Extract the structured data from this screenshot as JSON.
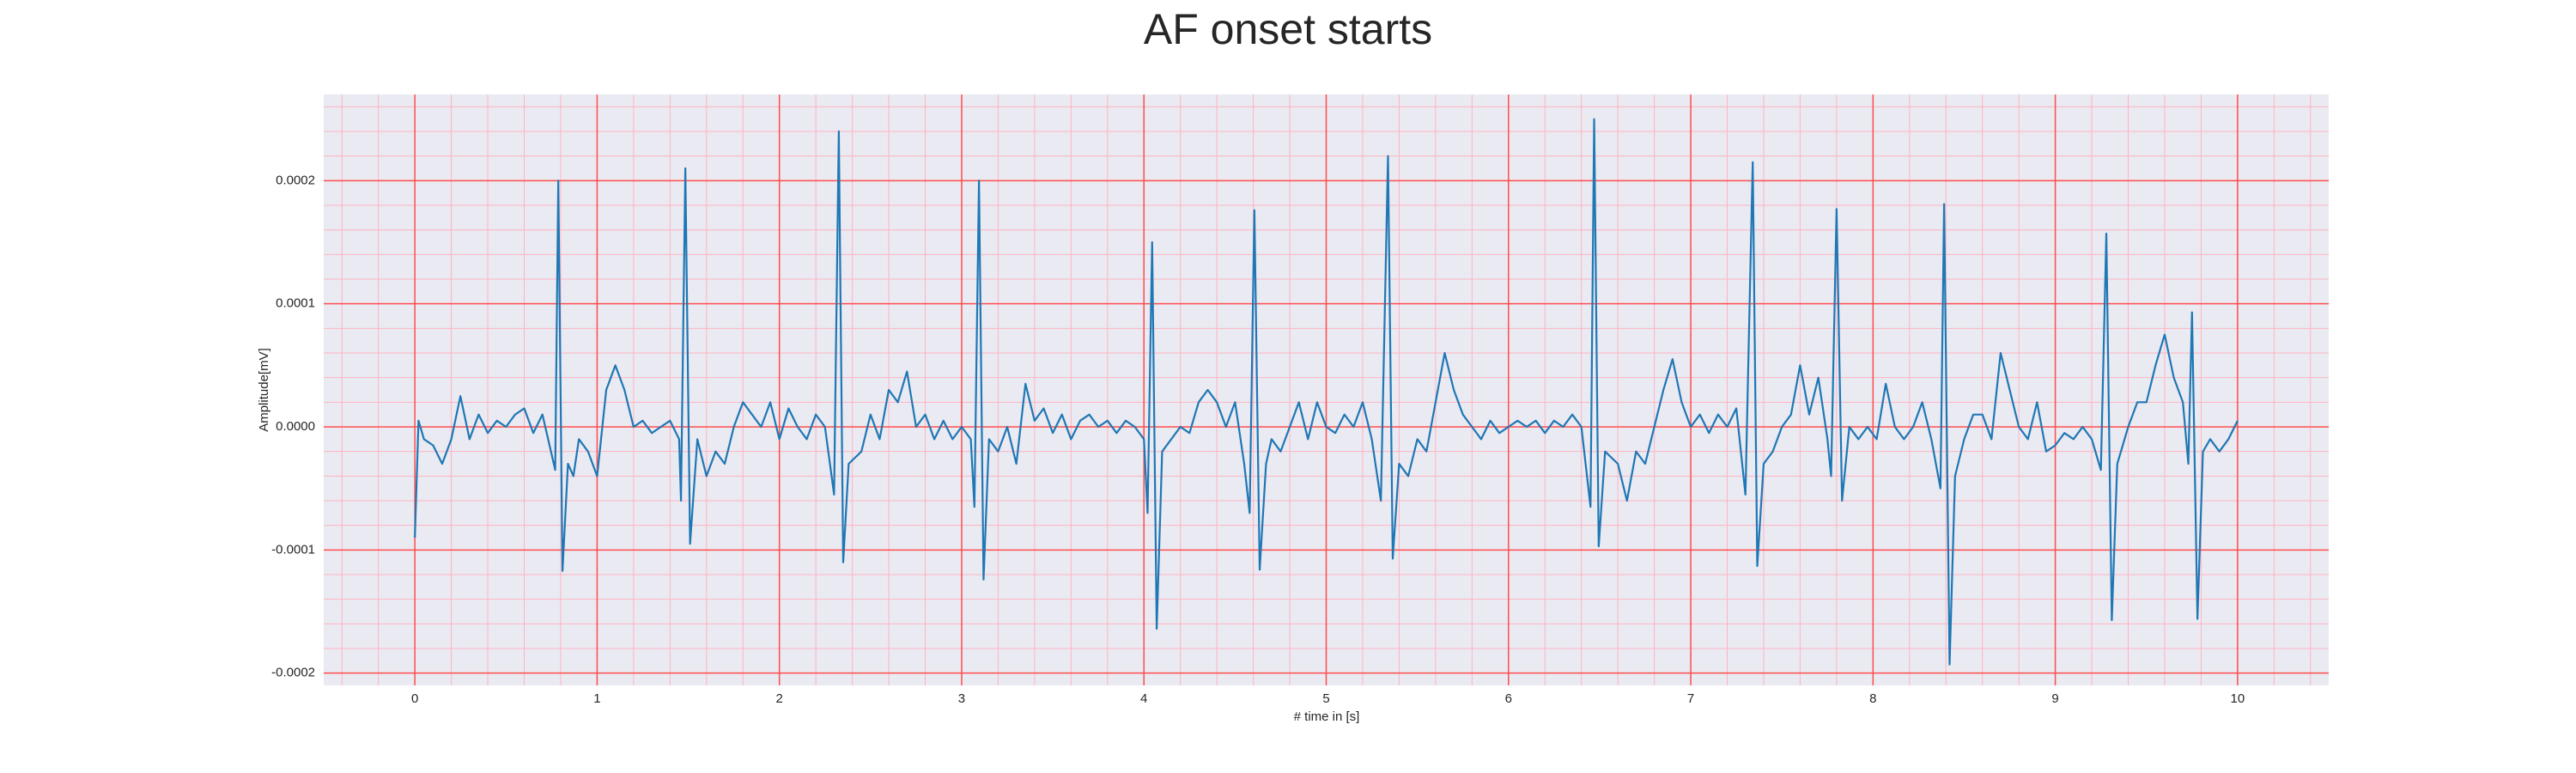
{
  "chart_data": {
    "type": "line",
    "title": "AF onset starts",
    "x_label": "# time in [s]",
    "y_label": "Amplitude[mV]",
    "color": "#1f77b4",
    "grid": true,
    "grid_color": "#ff4d4d",
    "minor_grid_color": "#ffb3c1",
    "background": "#eaeaf2",
    "xlim": [
      -0.5,
      10.5
    ],
    "ylim": [
      -0.00021,
      0.00027
    ],
    "xticks": [
      0,
      1,
      2,
      3,
      4,
      5,
      6,
      7,
      8,
      9,
      10
    ],
    "yticks": [
      {
        "value": -0.0002,
        "label": "-0.0002"
      },
      {
        "value": -0.0001,
        "label": "-0.0001"
      },
      {
        "value": 0,
        "label": "0.0000"
      },
      {
        "value": 0.0001,
        "label": "0.0001"
      },
      {
        "value": 0.0002,
        "label": "0.0002"
      }
    ],
    "xminorticks": [
      -0.4,
      -0.2,
      0.2,
      0.4,
      0.6,
      0.8,
      1.2,
      1.4,
      1.6,
      1.8,
      2.2,
      2.4,
      2.6,
      2.8,
      3.2,
      3.4,
      3.6,
      3.8,
      4.2,
      4.4,
      4.6,
      4.8,
      5.2,
      5.4,
      5.6,
      5.8,
      6.2,
      6.4,
      6.6,
      6.8,
      7.2,
      7.4,
      7.6,
      7.8,
      8.2,
      8.4,
      8.6,
      8.8,
      9.2,
      9.4,
      9.6,
      9.8,
      10.2,
      10.4
    ],
    "yminorticks": [
      -0.00018,
      -0.00016,
      -0.00014,
      -0.00012,
      -8e-05,
      -6e-05,
      -4e-05,
      -2e-05,
      2e-05,
      4e-05,
      6e-05,
      8e-05,
      0.00012,
      0.00014,
      0.00016,
      0.00018,
      0.00022,
      0.00024,
      0.00026
    ],
    "x": [
      0,
      0.02,
      0.05,
      0.1,
      0.15,
      0.2,
      0.25,
      0.3,
      0.35,
      0.4,
      0.45,
      0.5,
      0.55,
      0.6,
      0.65,
      0.7,
      0.77,
      0.787,
      0.81,
      0.84,
      0.87,
      0.9,
      0.95,
      1.0,
      1.05,
      1.1,
      1.15,
      1.2,
      1.25,
      1.3,
      1.35,
      1.4,
      1.45,
      1.46,
      1.484,
      1.51,
      1.55,
      1.6,
      1.65,
      1.7,
      1.75,
      1.8,
      1.85,
      1.9,
      1.95,
      2.0,
      2.05,
      2.1,
      2.15,
      2.2,
      2.25,
      2.3,
      2.326,
      2.35,
      2.38,
      2.45,
      2.5,
      2.55,
      2.6,
      2.65,
      2.7,
      2.75,
      2.8,
      2.85,
      2.9,
      2.95,
      3.0,
      3.05,
      3.07,
      3.095,
      3.12,
      3.15,
      3.2,
      3.25,
      3.3,
      3.35,
      3.4,
      3.45,
      3.5,
      3.55,
      3.6,
      3.65,
      3.7,
      3.75,
      3.8,
      3.85,
      3.9,
      3.95,
      4.0,
      4.02,
      4.045,
      4.07,
      4.1,
      4.15,
      4.2,
      4.25,
      4.3,
      4.35,
      4.4,
      4.45,
      4.5,
      4.55,
      4.58,
      4.606,
      4.635,
      4.67,
      4.7,
      4.75,
      4.8,
      4.85,
      4.9,
      4.95,
      5.0,
      5.05,
      5.1,
      5.15,
      5.2,
      5.25,
      5.3,
      5.339,
      5.365,
      5.4,
      5.45,
      5.5,
      5.55,
      5.6,
      5.65,
      5.7,
      5.75,
      5.8,
      5.85,
      5.9,
      5.95,
      6.0,
      6.05,
      6.1,
      6.15,
      6.2,
      6.25,
      6.3,
      6.35,
      6.4,
      6.45,
      6.47,
      6.495,
      6.53,
      6.6,
      6.65,
      6.7,
      6.75,
      6.8,
      6.85,
      6.9,
      6.95,
      7.0,
      7.05,
      7.1,
      7.15,
      7.2,
      7.25,
      7.3,
      7.34,
      7.365,
      7.4,
      7.45,
      7.5,
      7.55,
      7.6,
      7.65,
      7.7,
      7.75,
      7.77,
      7.8,
      7.83,
      7.87,
      7.92,
      7.97,
      8.02,
      8.07,
      8.12,
      8.17,
      8.22,
      8.27,
      8.32,
      8.37,
      8.39,
      8.42,
      8.45,
      8.5,
      8.55,
      8.6,
      8.65,
      8.7,
      8.75,
      8.8,
      8.85,
      8.9,
      8.95,
      9.0,
      9.05,
      9.1,
      9.15,
      9.2,
      9.25,
      9.28,
      9.31,
      9.34,
      9.4,
      9.45,
      9.5,
      9.55,
      9.6,
      9.65,
      9.7,
      9.73,
      9.75,
      9.78,
      9.81,
      9.85,
      9.9,
      9.95,
      10.0
    ],
    "values": [
      -9e-05,
      5e-06,
      -1e-05,
      -1.5e-05,
      -3e-05,
      -1e-05,
      2.5e-05,
      -1e-05,
      1e-05,
      -5e-06,
      5e-06,
      0,
      1e-05,
      1.5e-05,
      -5e-06,
      1e-05,
      -3.5e-05,
      0.0002,
      -0.000117,
      -3e-05,
      -4e-05,
      -1e-05,
      -2e-05,
      -4e-05,
      3e-05,
      5e-05,
      3e-05,
      0,
      5e-06,
      -5e-06,
      0,
      5e-06,
      -1e-05,
      -6e-05,
      0.00021,
      -9.5e-05,
      -1e-05,
      -4e-05,
      -2e-05,
      -3e-05,
      0,
      2e-05,
      1e-05,
      0,
      2e-05,
      -1e-05,
      1.5e-05,
      0,
      -1e-05,
      1e-05,
      0,
      -5.5e-05,
      0.00024,
      -0.00011,
      -3e-05,
      -2e-05,
      1e-05,
      -1e-05,
      3e-05,
      2e-05,
      4.5e-05,
      0,
      1e-05,
      -1e-05,
      5e-06,
      -1e-05,
      0,
      -1e-05,
      -6.5e-05,
      0.0002,
      -0.000124,
      -1e-05,
      -2e-05,
      0,
      -3e-05,
      3.5e-05,
      5e-06,
      1.5e-05,
      -5e-06,
      1e-05,
      -1e-05,
      5e-06,
      1e-05,
      0,
      5e-06,
      -5e-06,
      5e-06,
      0,
      -1e-05,
      -7e-05,
      0.00015,
      -0.000164,
      -2e-05,
      -1e-05,
      0,
      -5e-06,
      2e-05,
      3e-05,
      2e-05,
      0,
      2e-05,
      -3e-05,
      -7e-05,
      0.000176,
      -0.000116,
      -3e-05,
      -1e-05,
      -2e-05,
      0,
      2e-05,
      -1e-05,
      2e-05,
      0,
      -5e-06,
      1e-05,
      0,
      2e-05,
      -1e-05,
      -6e-05,
      0.00022,
      -0.000107,
      -3e-05,
      -4e-05,
      -1e-05,
      -2e-05,
      2e-05,
      6e-05,
      3e-05,
      1e-05,
      0,
      -1e-05,
      5e-06,
      -5e-06,
      0,
      5e-06,
      0,
      5e-06,
      -5e-06,
      5e-06,
      0,
      1e-05,
      0,
      -6.5e-05,
      0.00025,
      -9.7e-05,
      -2e-05,
      -3e-05,
      -6e-05,
      -2e-05,
      -3e-05,
      0,
      3e-05,
      5.5e-05,
      2e-05,
      0,
      1e-05,
      -5e-06,
      1e-05,
      0,
      1.5e-05,
      -5.5e-05,
      0.000215,
      -0.000113,
      -3e-05,
      -2e-05,
      0,
      1e-05,
      5e-05,
      1e-05,
      4e-05,
      -1e-05,
      -4e-05,
      0.000177,
      -6e-05,
      0,
      -1e-05,
      0,
      -1e-05,
      3.5e-05,
      0,
      -1e-05,
      0,
      2e-05,
      -1e-05,
      -5e-05,
      0.000181,
      -0.000193,
      -4e-05,
      -1e-05,
      1e-05,
      1e-05,
      -1e-05,
      6e-05,
      3e-05,
      0,
      -1e-05,
      2e-05,
      -2e-05,
      -1.5e-05,
      -5e-06,
      -1e-05,
      0,
      -1e-05,
      -3.5e-05,
      0.000157,
      -0.000157,
      -3e-05,
      0,
      2e-05,
      2e-05,
      5e-05,
      7.5e-05,
      4e-05,
      2e-05,
      -3e-05,
      9.3e-05,
      -0.000156,
      -2e-05,
      -1e-05,
      -2e-05,
      -1e-05,
      5e-06
    ]
  }
}
